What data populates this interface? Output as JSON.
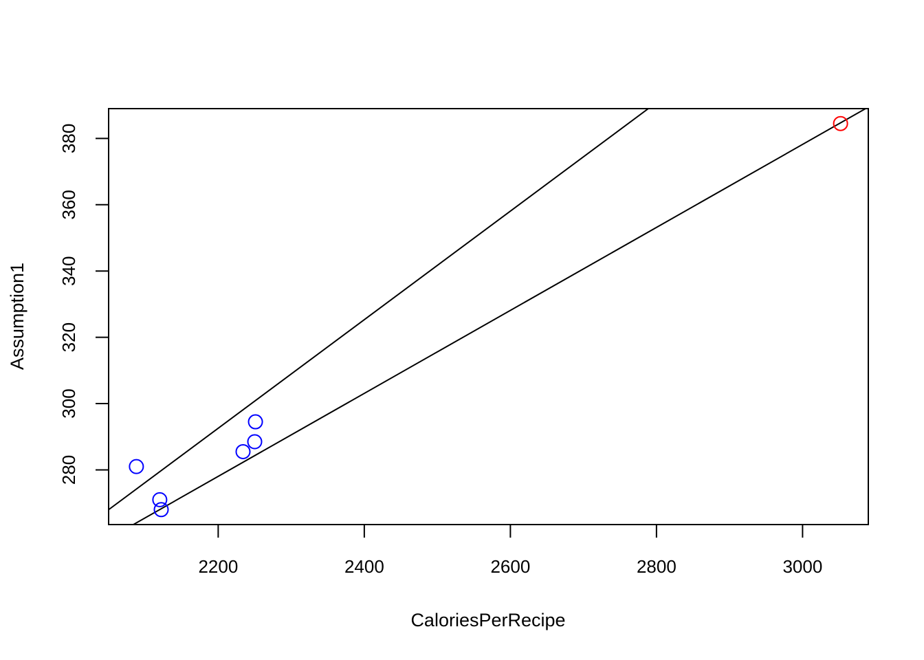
{
  "chart_data": {
    "type": "scatter",
    "title": "",
    "xlabel": "CaloriesPerRecipe",
    "ylabel": "Assumption1",
    "xlim": [
      2050,
      3090
    ],
    "ylim": [
      263.5,
      389
    ],
    "x_ticks": [
      2200,
      2400,
      2600,
      2800,
      3000
    ],
    "y_ticks": [
      280,
      300,
      320,
      340,
      360,
      380
    ],
    "grid": false,
    "legend": "none",
    "series": [
      {
        "color": "#0000ff",
        "points": [
          {
            "x": 2088,
            "y": 281
          },
          {
            "x": 2120,
            "y": 271
          },
          {
            "x": 2122,
            "y": 268
          },
          {
            "x": 2234,
            "y": 285.5
          },
          {
            "x": 2250,
            "y": 288.5
          },
          {
            "x": 2251,
            "y": 294.5
          }
        ]
      },
      {
        "color": "#ff0000",
        "points": [
          {
            "x": 3052,
            "y": 384.5
          }
        ]
      }
    ],
    "lines": [
      {
        "color": "#000000",
        "intercept": 2.6,
        "slope": 0.1252
      },
      {
        "color": "#000000",
        "intercept": -67.8,
        "slope": 0.1638
      }
    ]
  }
}
